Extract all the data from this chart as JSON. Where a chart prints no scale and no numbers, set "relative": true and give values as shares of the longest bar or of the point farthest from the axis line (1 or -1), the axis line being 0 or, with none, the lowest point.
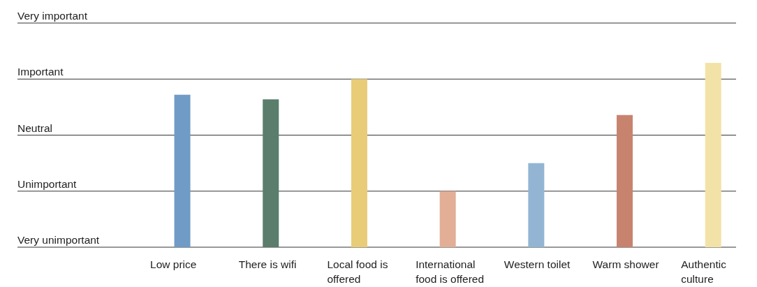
{
  "chart_data": {
    "type": "bar",
    "relative": true,
    "categories": [
      "Low price",
      "There is wifi",
      "Local food is offered",
      "International food is offered",
      "Western toilet",
      "Warm shower",
      "Authentic culture"
    ],
    "values": [
      0.827,
      0.802,
      0.912,
      0.304,
      0.456,
      0.717,
      1
    ],
    "colors": [
      "#6f9bc6",
      "#5a7d6c",
      "#e8cc78",
      "#e2ae96",
      "#93b5d3",
      "#c7836e",
      "#f3e2a8"
    ],
    "annotations": [
      "Very unimportant",
      "Unimportant",
      "Neutral",
      "Important",
      "Very important"
    ],
    "grid": true
  }
}
